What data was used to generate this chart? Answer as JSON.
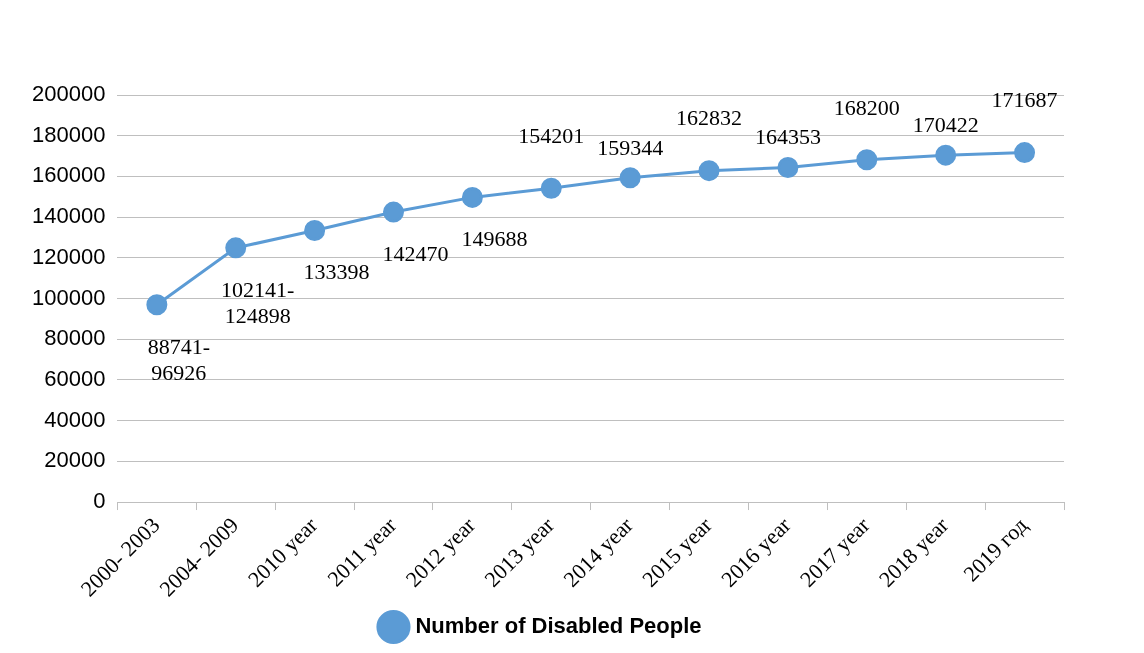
{
  "chart_data": {
    "type": "line",
    "categories": [
      "2000- 2003",
      "2004- 2009",
      "2010 year",
      "2011 year",
      "2012 year",
      "2013 year",
      "2014 year",
      "2015 year",
      "2016 year",
      "2017 year",
      "2018 year",
      "2019 год"
    ],
    "series": [
      {
        "name": "Number of Disabled People",
        "color": "#5b9bd5",
        "values": [
          96926,
          124898,
          133398,
          142470,
          149688,
          154201,
          159344,
          162832,
          164353,
          168200,
          170422,
          171687
        ],
        "value_labels": [
          "88741-96926",
          "102141-124898",
          "133398",
          "142470",
          "149688",
          "154201",
          "159344",
          "162832",
          "164353",
          "168200",
          "170422",
          "171687"
        ]
      }
    ],
    "ylim": [
      0,
      200000
    ],
    "yticks": [
      0,
      20000,
      40000,
      60000,
      80000,
      100000,
      120000,
      140000,
      160000,
      180000,
      200000
    ],
    "grid": "y",
    "legend": "bottom",
    "marker": "circle",
    "line_style": "solid"
  }
}
